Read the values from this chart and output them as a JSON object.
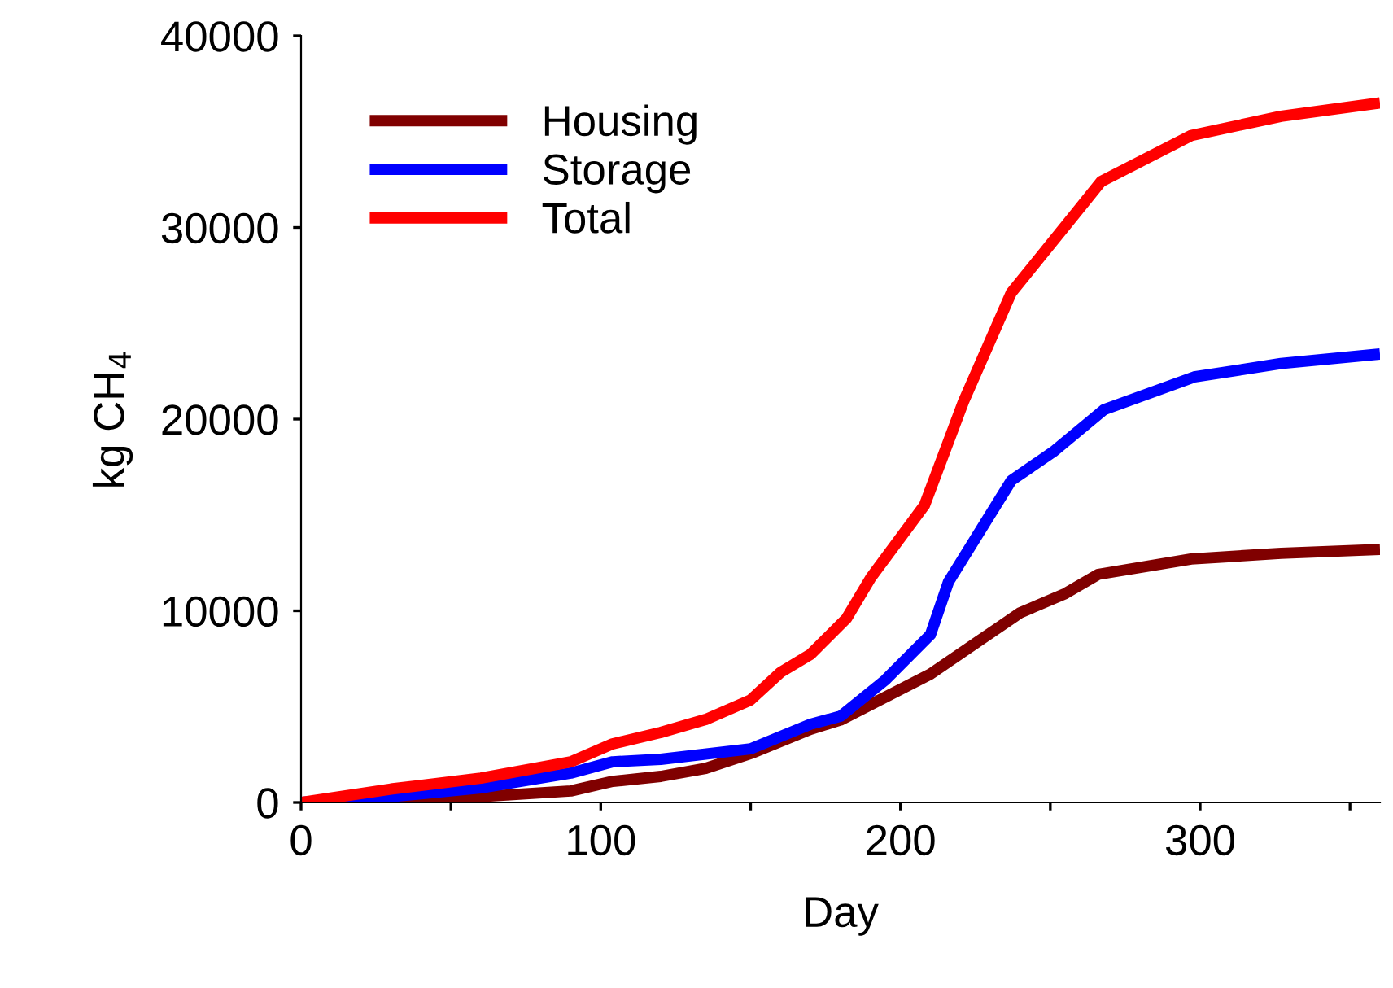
{
  "chart_data": {
    "type": "line",
    "xlabel": "Day",
    "ylabel": "kg CH$_{4}$",
    "xlim": [
      0,
      360
    ],
    "ylim": [
      0,
      40000
    ],
    "xticks": [
      0,
      {
        "value": 50,
        "label": null
      },
      100,
      {
        "value": 150,
        "label": null
      },
      200,
      {
        "value": 250,
        "label": null
      },
      300,
      {
        "value": 350,
        "label": null
      }
    ],
    "yticks": [
      0,
      10000,
      20000,
      30000,
      40000
    ],
    "grid": false,
    "legend": "top left",
    "marker": "none",
    "line_style": "solid",
    "series": [
      {
        "name": "Housing",
        "color": "#800000",
        "x": [
          0,
          30,
          60,
          90,
          104,
          120,
          135,
          150,
          170,
          180,
          195,
          210,
          225,
          240,
          255,
          266,
          297,
          327,
          360
        ],
        "values": [
          0,
          100,
          300,
          600,
          1100,
          1360,
          1780,
          2550,
          3820,
          4300,
          5500,
          6700,
          8300,
          9900,
          10900,
          11900,
          12700,
          13000,
          13200
        ]
      },
      {
        "name": "Storage",
        "color": "#0000ff",
        "x": [
          0,
          30,
          60,
          90,
          104,
          120,
          150,
          170,
          180,
          195,
          210,
          216,
          237,
          251,
          268,
          298,
          327,
          360
        ],
        "values": [
          0,
          300,
          760,
          1530,
          2120,
          2250,
          2800,
          4080,
          4500,
          6400,
          8750,
          11500,
          16800,
          18300,
          20500,
          22200,
          22900,
          23400
        ]
      },
      {
        "name": "Total",
        "color": "#ff0000",
        "x": [
          0,
          30,
          60,
          90,
          104,
          120,
          135,
          150,
          160,
          170,
          182,
          190,
          208,
          221,
          237,
          251,
          267,
          297,
          327,
          360
        ],
        "values": [
          0,
          700,
          1270,
          2120,
          3060,
          3650,
          4330,
          5350,
          6790,
          7730,
          9600,
          11700,
          15500,
          20900,
          26600,
          29300,
          32400,
          34800,
          35800,
          36500
        ]
      }
    ]
  }
}
